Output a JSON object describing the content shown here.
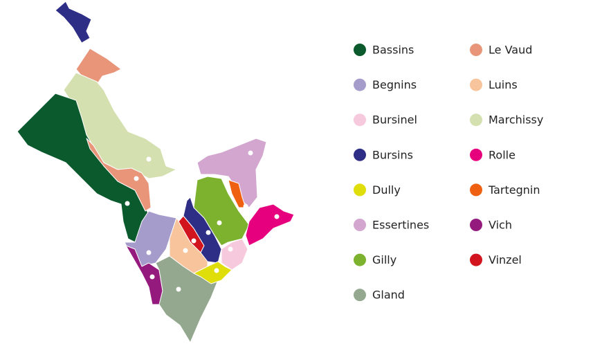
{
  "legend": {
    "items": [
      {
        "name": "Bassins",
        "color": "#0b5a2e"
      },
      {
        "name": "Begnins",
        "color": "#a59ccc"
      },
      {
        "name": "Bursinel",
        "color": "#f6c9dd"
      },
      {
        "name": "Bursins",
        "color": "#2e2e86"
      },
      {
        "name": "Dully",
        "color": "#dfdd0a"
      },
      {
        "name": "Essertines",
        "color": "#d3a6d0"
      },
      {
        "name": "Gilly",
        "color": "#7db22f"
      },
      {
        "name": "Gland",
        "color": "#93a88e"
      },
      {
        "name": "Le Vaud",
        "color": "#e8957a"
      },
      {
        "name": "Luins",
        "color": "#f8c49c"
      },
      {
        "name": "Marchissy",
        "color": "#d4e0b0"
      },
      {
        "name": "Rolle",
        "color": "#e6007e"
      },
      {
        "name": "Tartegnin",
        "color": "#ef6010"
      },
      {
        "name": "Vich",
        "color": "#951a7d"
      },
      {
        "name": "Vinzel",
        "color": "#d2141e"
      }
    ]
  }
}
